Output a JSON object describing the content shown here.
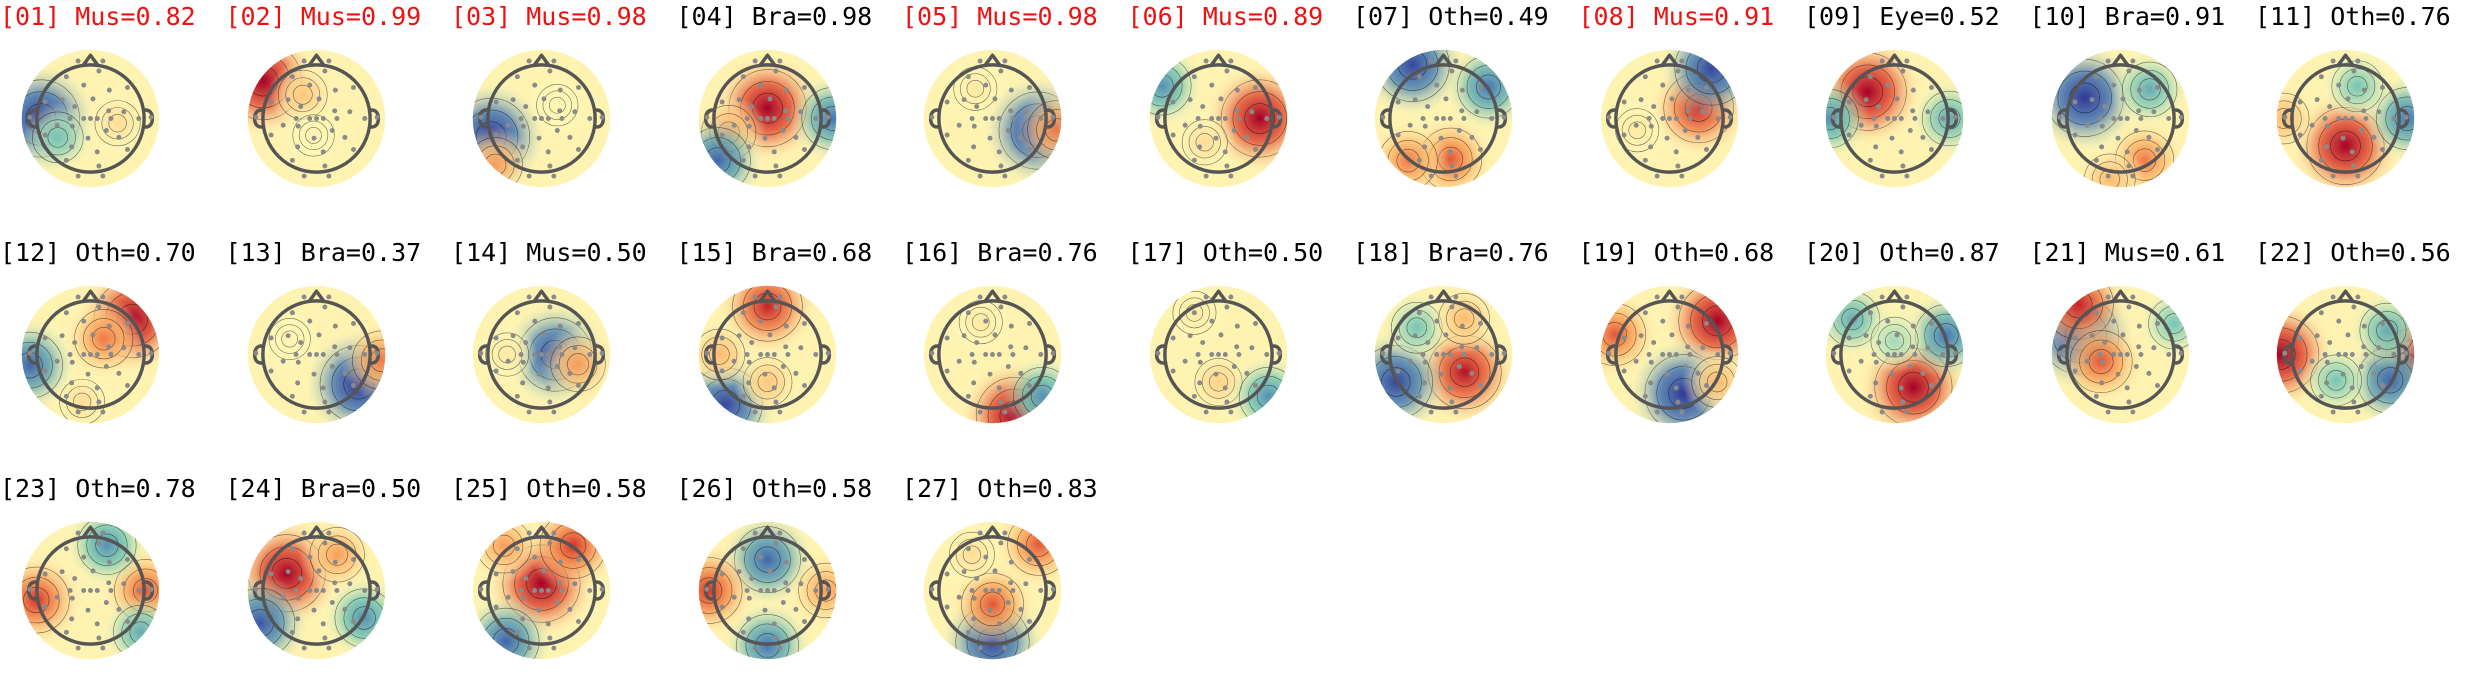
{
  "figure": {
    "label_color_flagged": "#ee1111",
    "label_color_normal": "#000000",
    "ic_maps": [
      {
        "label": "[01] Mus=0.82",
        "flagged": true,
        "pattern": [
          {
            "r": 72,
            "a": 180,
            "v": -1.0
          },
          {
            "r": 55,
            "a": 210,
            "v": -0.3
          },
          {
            "r": 40,
            "a": 350,
            "v": 0.15
          }
        ]
      },
      {
        "label": "[02] Mus=0.99",
        "flagged": true,
        "pattern": [
          {
            "r": 95,
            "a": 145,
            "v": 1.0
          },
          {
            "r": 40,
            "a": 120,
            "v": 0.25
          },
          {
            "r": 25,
            "a": 260,
            "v": 0.05
          }
        ]
      },
      {
        "label": "[03] Mus=0.98",
        "flagged": true,
        "pattern": [
          {
            "r": 78,
            "a": 200,
            "v": -1.0
          },
          {
            "r": 95,
            "a": 225,
            "v": 0.4
          },
          {
            "r": 30,
            "a": 40,
            "v": 0.05
          }
        ]
      },
      {
        "label": "[04] Bra=0.98",
        "flagged": false,
        "pattern": [
          {
            "r": 15,
            "a": 90,
            "v": 1.0
          },
          {
            "r": 60,
            "a": 200,
            "v": 0.4
          },
          {
            "r": 95,
            "a": 0,
            "v": -0.6
          },
          {
            "r": 95,
            "a": 220,
            "v": -0.7
          }
        ]
      },
      {
        "label": "[05] Mus=0.98",
        "flagged": true,
        "pattern": [
          {
            "r": 68,
            "a": 345,
            "v": -1.0
          },
          {
            "r": 95,
            "a": 350,
            "v": 0.5
          },
          {
            "r": 50,
            "a": 120,
            "v": 0.1
          }
        ]
      },
      {
        "label": "[06] Mus=0.89",
        "flagged": true,
        "pattern": [
          {
            "r": 60,
            "a": 0,
            "v": 1.0
          },
          {
            "r": 95,
            "a": 150,
            "v": -0.5
          },
          {
            "r": 40,
            "a": 240,
            "v": 0.15
          }
        ]
      },
      {
        "label": "[07] Oth=0.49",
        "flagged": false,
        "pattern": [
          {
            "r": 90,
            "a": 120,
            "v": -0.9
          },
          {
            "r": 80,
            "a": 35,
            "v": -0.6
          },
          {
            "r": 60,
            "a": 280,
            "v": 0.6
          },
          {
            "r": 80,
            "a": 230,
            "v": 0.5
          }
        ]
      },
      {
        "label": "[08] Mus=0.91",
        "flagged": true,
        "pattern": [
          {
            "r": 45,
            "a": 20,
            "v": 0.8
          },
          {
            "r": 95,
            "a": 50,
            "v": -0.9
          },
          {
            "r": 50,
            "a": 200,
            "v": 0.1
          }
        ]
      },
      {
        "label": "[09] Eye=0.52",
        "flagged": false,
        "pattern": [
          {
            "r": 55,
            "a": 135,
            "v": 1.0
          },
          {
            "r": 95,
            "a": 180,
            "v": -0.5
          },
          {
            "r": 80,
            "a": 0,
            "v": -0.4
          }
        ]
      },
      {
        "label": "[10] Bra=0.91",
        "flagged": false,
        "pattern": [
          {
            "r": 60,
            "a": 150,
            "v": -1.0
          },
          {
            "r": 60,
            "a": 45,
            "v": -0.4
          },
          {
            "r": 70,
            "a": 300,
            "v": 0.5
          },
          {
            "r": 90,
            "a": 260,
            "v": 0.3
          }
        ]
      },
      {
        "label": "[11] Oth=0.76",
        "flagged": false,
        "pattern": [
          {
            "r": 40,
            "a": 270,
            "v": 1.0
          },
          {
            "r": 90,
            "a": 0,
            "v": -0.6
          },
          {
            "r": 50,
            "a": 70,
            "v": -0.3
          },
          {
            "r": 90,
            "a": 180,
            "v": 0.3
          }
        ]
      },
      {
        "label": "[12] Oth=0.70",
        "flagged": false,
        "pattern": [
          {
            "r": 80,
            "a": 40,
            "v": 1.0
          },
          {
            "r": 90,
            "a": 190,
            "v": -0.7
          },
          {
            "r": 30,
            "a": 50,
            "v": 0.5
          },
          {
            "r": 70,
            "a": 260,
            "v": 0.15
          }
        ]
      },
      {
        "label": "[13] Bra=0.37",
        "flagged": false,
        "pattern": [
          {
            "r": 75,
            "a": 325,
            "v": -1.0
          },
          {
            "r": 95,
            "a": 355,
            "v": 0.5
          },
          {
            "r": 45,
            "a": 150,
            "v": 0.05
          }
        ]
      },
      {
        "label": "[14] Mus=0.50",
        "flagged": false,
        "pattern": [
          {
            "r": 20,
            "a": 0,
            "v": -0.9
          },
          {
            "r": 55,
            "a": 345,
            "v": 0.4
          },
          {
            "r": 50,
            "a": 180,
            "v": 0.1
          }
        ]
      },
      {
        "label": "[15] Bra=0.68",
        "flagged": false,
        "pattern": [
          {
            "r": 70,
            "a": 90,
            "v": 0.8
          },
          {
            "r": 95,
            "a": 230,
            "v": -0.9
          },
          {
            "r": 40,
            "a": 270,
            "v": 0.25
          },
          {
            "r": 70,
            "a": 180,
            "v": 0.3
          }
        ]
      },
      {
        "label": "[16] Bra=0.76",
        "flagged": false,
        "pattern": [
          {
            "r": 95,
            "a": 290,
            "v": 1.0
          },
          {
            "r": 95,
            "a": 320,
            "v": -0.5
          },
          {
            "r": 50,
            "a": 110,
            "v": 0.1
          }
        ]
      },
      {
        "label": "[17] Oth=0.50",
        "flagged": false,
        "pattern": [
          {
            "r": 40,
            "a": 270,
            "v": 0.2
          },
          {
            "r": 95,
            "a": 320,
            "v": -0.5
          },
          {
            "r": 70,
            "a": 120,
            "v": 0.1
          }
        ]
      },
      {
        "label": "[18] Bra=0.76",
        "flagged": false,
        "pattern": [
          {
            "r": 40,
            "a": 320,
            "v": 0.9
          },
          {
            "r": 80,
            "a": 210,
            "v": -0.9
          },
          {
            "r": 55,
            "a": 135,
            "v": -0.3
          },
          {
            "r": 60,
            "a": 60,
            "v": 0.3
          }
        ]
      },
      {
        "label": "[19] Oth=0.68",
        "flagged": false,
        "pattern": [
          {
            "r": 85,
            "a": 35,
            "v": 1.0
          },
          {
            "r": 60,
            "a": 290,
            "v": -1.0
          },
          {
            "r": 85,
            "a": 160,
            "v": 0.6
          },
          {
            "r": 80,
            "a": 330,
            "v": 0.3
          }
        ]
      },
      {
        "label": "[20] Oth=0.87",
        "flagged": false,
        "pattern": [
          {
            "r": 55,
            "a": 300,
            "v": 1.0
          },
          {
            "r": 80,
            "a": 20,
            "v": -0.6
          },
          {
            "r": 80,
            "a": 140,
            "v": -0.4
          },
          {
            "r": 20,
            "a": 90,
            "v": -0.2
          }
        ]
      },
      {
        "label": "[21] Mus=0.61",
        "flagged": false,
        "pattern": [
          {
            "r": 65,
            "a": 155,
            "v": -1.0
          },
          {
            "r": 95,
            "a": 130,
            "v": 0.8
          },
          {
            "r": 30,
            "a": 200,
            "v": 0.6
          },
          {
            "r": 90,
            "a": 30,
            "v": -0.3
          }
        ]
      },
      {
        "label": "[22] Oth=0.56",
        "flagged": false,
        "pattern": [
          {
            "r": 95,
            "a": 180,
            "v": 1.0
          },
          {
            "r": 95,
            "a": 0,
            "v": 0.9
          },
          {
            "r": 75,
            "a": 330,
            "v": -0.7
          },
          {
            "r": 70,
            "a": 30,
            "v": -0.4
          },
          {
            "r": 40,
            "a": 250,
            "v": -0.3
          }
        ]
      },
      {
        "label": "[23] Oth=0.78",
        "flagged": false,
        "pattern": [
          {
            "r": 80,
            "a": 190,
            "v": 0.7
          },
          {
            "r": 80,
            "a": 0,
            "v": 0.6
          },
          {
            "r": 70,
            "a": 70,
            "v": -0.5
          },
          {
            "r": 95,
            "a": 320,
            "v": -0.4
          }
        ]
      },
      {
        "label": "[24] Bra=0.50",
        "flagged": false,
        "pattern": [
          {
            "r": 50,
            "a": 150,
            "v": 1.0
          },
          {
            "r": 95,
            "a": 210,
            "v": -0.8
          },
          {
            "r": 80,
            "a": 330,
            "v": -0.5
          },
          {
            "r": 60,
            "a": 60,
            "v": 0.4
          }
        ]
      },
      {
        "label": "[25] Oth=0.58",
        "flagged": false,
        "pattern": [
          {
            "r": 10,
            "a": 90,
            "v": 1.0
          },
          {
            "r": 80,
            "a": 55,
            "v": 0.7
          },
          {
            "r": 90,
            "a": 235,
            "v": -0.7
          },
          {
            "r": 85,
            "a": 130,
            "v": 0.4
          }
        ]
      },
      {
        "label": "[26] Oth=0.58",
        "flagged": false,
        "pattern": [
          {
            "r": 45,
            "a": 90,
            "v": -0.7
          },
          {
            "r": 80,
            "a": 270,
            "v": -0.6
          },
          {
            "r": 85,
            "a": 180,
            "v": 0.7
          },
          {
            "r": 85,
            "a": 0,
            "v": 0.4
          }
        ]
      },
      {
        "label": "[27] Oth=0.83",
        "flagged": false,
        "pattern": [
          {
            "r": 75,
            "a": 270,
            "v": -0.9
          },
          {
            "r": 20,
            "a": 270,
            "v": 0.6
          },
          {
            "r": 95,
            "a": 45,
            "v": 0.6
          },
          {
            "r": 60,
            "a": 120,
            "v": 0.15
          }
        ]
      }
    ]
  }
}
